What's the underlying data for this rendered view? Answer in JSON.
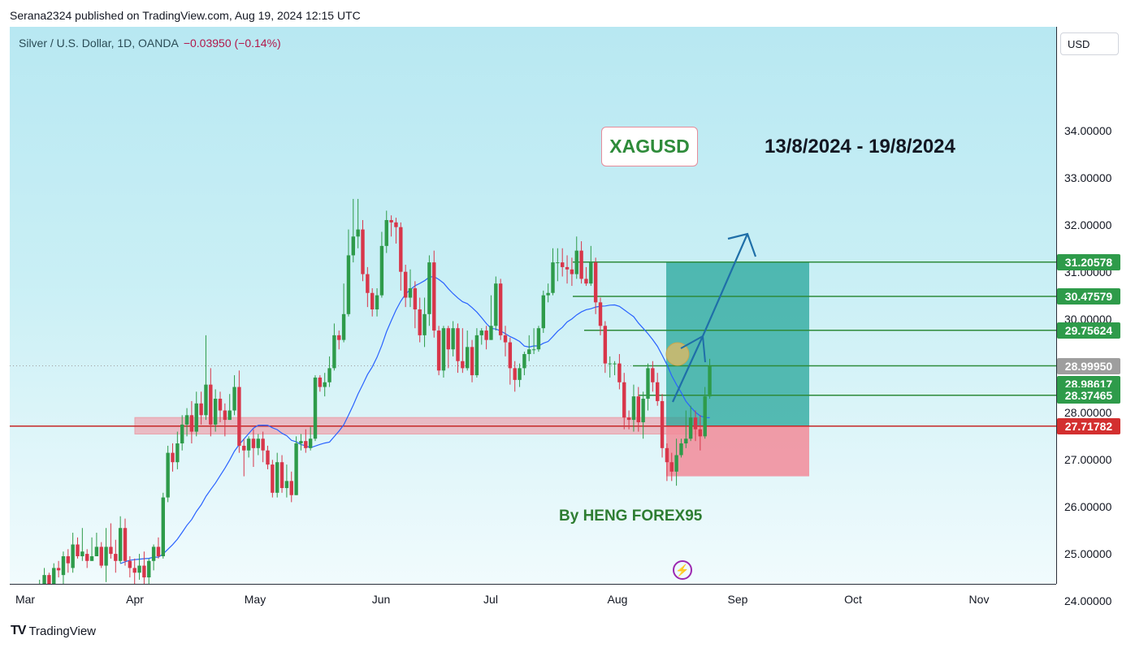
{
  "header": {
    "published_line": "Serana2324 published on TradingView.com, Aug 19, 2024 12:15 UTC"
  },
  "symbol": {
    "title": "Silver / U.S. Dollar, 1D, OANDA",
    "change": "−0.03950 (−0.14%)"
  },
  "annotations": {
    "symbol_box": "XAGUSD",
    "date_range": "13/8/2024 - 19/8/2024",
    "author": "By HENG FOREX95",
    "bolt_icon": "lightning-icon"
  },
  "yaxis": {
    "currency": "USD"
  },
  "footer": {
    "logo_mark": "TV",
    "brand": "TradingView"
  },
  "colors": {
    "up": "#2e9b4a",
    "down": "#d8364a",
    "ma": "#2962ff",
    "target_zone": "#26a69a",
    "stop_zone": "#f28b99",
    "support": "#c62828"
  },
  "chart_data": {
    "type": "candlestick",
    "title": "Silver / U.S. Dollar, 1D, OANDA",
    "ylim": [
      23.8,
      35.5
    ],
    "yticks": [
      24,
      25,
      26,
      27,
      28,
      29,
      30,
      31,
      32,
      33,
      34
    ],
    "ytick_labels": [
      "24.00000",
      "25.00000",
      "26.00000",
      "27.00000",
      "28.00000",
      "29.00000",
      "30.00000",
      "31.00000",
      "32.00000",
      "33.00000",
      "34.00000"
    ],
    "x_months": [
      "Mar",
      "Apr",
      "May",
      "Jun",
      "Jul",
      "Aug",
      "Sep",
      "Oct",
      "Nov"
    ],
    "price_labels": [
      {
        "value": 31.20578,
        "text": "31.20578",
        "color": "#2e9b4a"
      },
      {
        "value": 30.47579,
        "text": "30.47579",
        "color": "#2e9b4a"
      },
      {
        "value": 29.75624,
        "text": "29.75624",
        "color": "#2e9b4a"
      },
      {
        "value": 28.9995,
        "text": "28.99950",
        "color": "#9e9e9e"
      },
      {
        "value": 28.98617,
        "text": "28.98617",
        "color": "#2e9b4a"
      },
      {
        "value": 28.37465,
        "text": "28.37465",
        "color": "#2e9b4a"
      },
      {
        "value": 27.71782,
        "text": "27.71782",
        "color": "#d32f2f"
      }
    ],
    "target_levels": [
      31.20578,
      30.47579,
      29.75624,
      28.9995,
      28.37465
    ],
    "support_level": 27.71782,
    "support_zone": [
      27.55,
      27.9
    ],
    "position": {
      "entry": 27.71782,
      "target": 31.20578,
      "stop": 26.65
    },
    "candles": [
      [
        24.02,
        24.08,
        23.98,
        23.9
      ],
      [
        23.9,
        24.05,
        24.25,
        23.85
      ],
      [
        24.3,
        24.35,
        24.45,
        24.0
      ],
      [
        24.35,
        24.55,
        24.7,
        24.25
      ],
      [
        24.55,
        24.3,
        24.6,
        24.2
      ],
      [
        24.3,
        24.7,
        24.8,
        24.2
      ],
      [
        24.7,
        24.65,
        24.85,
        24.5
      ],
      [
        24.55,
        24.95,
        25.05,
        24.35
      ],
      [
        24.95,
        24.8,
        25.1,
        24.6
      ],
      [
        24.7,
        25.2,
        25.45,
        24.6
      ],
      [
        25.2,
        24.95,
        25.35,
        24.9
      ],
      [
        24.95,
        25.05,
        25.55,
        24.85
      ],
      [
        25.0,
        24.85,
        25.1,
        24.7
      ],
      [
        24.85,
        24.95,
        25.35,
        24.85
      ],
      [
        24.95,
        25.15,
        25.45,
        24.95
      ],
      [
        25.15,
        24.75,
        25.25,
        24.7
      ],
      [
        24.75,
        25.15,
        25.55,
        24.4
      ],
      [
        25.15,
        25.0,
        25.65,
        24.9
      ],
      [
        25.0,
        24.85,
        25.3,
        24.6
      ],
      [
        24.85,
        25.55,
        25.8,
        24.8
      ],
      [
        25.55,
        24.85,
        25.75,
        24.75
      ],
      [
        24.85,
        24.7,
        24.95,
        24.5
      ],
      [
        24.7,
        24.6,
        24.9,
        24.35
      ],
      [
        24.6,
        24.75,
        25.0,
        24.45
      ],
      [
        24.75,
        24.5,
        25.05,
        24.35
      ],
      [
        24.5,
        24.85,
        24.9,
        24.35
      ],
      [
        24.85,
        25.15,
        25.2,
        24.65
      ],
      [
        25.15,
        24.95,
        25.35,
        24.9
      ],
      [
        24.95,
        26.2,
        26.3,
        24.9
      ],
      [
        26.2,
        27.15,
        27.3,
        26.1
      ],
      [
        27.15,
        26.95,
        27.35,
        26.75
      ],
      [
        26.95,
        27.35,
        27.6,
        26.8
      ],
      [
        27.35,
        27.75,
        27.95,
        27.2
      ],
      [
        27.75,
        27.95,
        28.1,
        27.5
      ],
      [
        27.95,
        27.6,
        28.25,
        27.35
      ],
      [
        27.6,
        28.2,
        28.45,
        27.5
      ],
      [
        28.2,
        27.95,
        28.45,
        27.75
      ],
      [
        27.95,
        28.6,
        29.65,
        27.85
      ],
      [
        28.6,
        27.75,
        28.95,
        27.5
      ],
      [
        27.75,
        28.3,
        28.5,
        27.6
      ],
      [
        28.3,
        28.05,
        28.45,
        27.8
      ],
      [
        28.05,
        27.85,
        28.2,
        27.5
      ],
      [
        27.85,
        28.05,
        28.4,
        27.85
      ],
      [
        28.05,
        28.55,
        28.8,
        27.95
      ],
      [
        28.55,
        27.3,
        28.9,
        27.15
      ],
      [
        27.3,
        27.2,
        27.45,
        26.65
      ],
      [
        27.2,
        27.45,
        27.5,
        27.05
      ],
      [
        27.45,
        27.25,
        27.65,
        26.85
      ],
      [
        27.25,
        27.45,
        27.55,
        27.1
      ],
      [
        27.45,
        27.2,
        27.6,
        26.95
      ],
      [
        27.2,
        26.9,
        27.3,
        26.8
      ],
      [
        26.9,
        26.3,
        27.0,
        26.2
      ],
      [
        26.3,
        26.95,
        27.15,
        26.2
      ],
      [
        26.95,
        26.4,
        27.1,
        26.3
      ],
      [
        26.4,
        26.55,
        26.9,
        26.2
      ],
      [
        26.55,
        26.25,
        26.75,
        26.1
      ],
      [
        26.25,
        27.35,
        27.5,
        26.25
      ],
      [
        27.35,
        27.4,
        27.55,
        27.2
      ],
      [
        27.4,
        27.25,
        27.65,
        27.15
      ],
      [
        27.25,
        27.45,
        27.7,
        27.2
      ],
      [
        27.45,
        28.75,
        28.8,
        27.4
      ],
      [
        28.75,
        28.55,
        28.8,
        28.45
      ],
      [
        28.55,
        28.65,
        28.85,
        28.35
      ],
      [
        28.65,
        28.95,
        29.2,
        28.55
      ],
      [
        28.95,
        29.65,
        29.9,
        28.9
      ],
      [
        29.65,
        29.55,
        29.75,
        29.35
      ],
      [
        29.55,
        30.1,
        30.75,
        29.5
      ],
      [
        30.1,
        31.35,
        31.9,
        30.05
      ],
      [
        31.35,
        31.75,
        32.55,
        31.2
      ],
      [
        31.75,
        31.9,
        32.55,
        31.5
      ],
      [
        31.9,
        30.95,
        32.1,
        30.8
      ],
      [
        30.95,
        30.55,
        31.1,
        30.25
      ],
      [
        30.55,
        30.2,
        30.65,
        30.05
      ],
      [
        30.2,
        30.5,
        30.65,
        30.05
      ],
      [
        30.5,
        31.55,
        31.85,
        30.45
      ],
      [
        31.55,
        32.1,
        32.3,
        31.4
      ],
      [
        32.1,
        32.05,
        32.2,
        31.75
      ],
      [
        32.05,
        31.95,
        32.15,
        31.6
      ],
      [
        31.95,
        31.0,
        32.05,
        30.6
      ],
      [
        31.0,
        30.45,
        31.15,
        30.25
      ],
      [
        30.45,
        30.65,
        31.05,
        30.25
      ],
      [
        30.65,
        30.2,
        30.8,
        29.8
      ],
      [
        30.2,
        29.65,
        30.45,
        29.5
      ],
      [
        29.65,
        30.1,
        30.45,
        29.4
      ],
      [
        30.1,
        31.2,
        31.35,
        29.85
      ],
      [
        31.2,
        29.75,
        31.45,
        29.6
      ],
      [
        29.75,
        28.9,
        29.85,
        28.8
      ],
      [
        28.9,
        29.8,
        29.85,
        28.75
      ],
      [
        29.8,
        29.35,
        29.85,
        28.95
      ],
      [
        29.35,
        29.8,
        29.95,
        29.2
      ],
      [
        29.8,
        29.1,
        29.9,
        28.85
      ],
      [
        29.1,
        28.95,
        29.8,
        28.85
      ],
      [
        28.95,
        29.4,
        29.75,
        28.9
      ],
      [
        29.4,
        28.8,
        29.55,
        28.65
      ],
      [
        28.8,
        29.65,
        29.8,
        28.75
      ],
      [
        29.65,
        29.75,
        29.8,
        29.45
      ],
      [
        29.75,
        29.55,
        29.85,
        29.35
      ],
      [
        29.55,
        29.85,
        30.5,
        29.55
      ],
      [
        29.85,
        30.75,
        30.9,
        29.75
      ],
      [
        30.75,
        29.65,
        30.85,
        29.55
      ],
      [
        29.65,
        29.5,
        29.85,
        29.2
      ],
      [
        29.5,
        28.95,
        29.6,
        28.6
      ],
      [
        28.95,
        28.7,
        29.1,
        28.45
      ],
      [
        28.7,
        28.95,
        29.05,
        28.55
      ],
      [
        28.95,
        29.25,
        29.3,
        28.8
      ],
      [
        29.25,
        29.35,
        29.65,
        29.1
      ],
      [
        29.35,
        29.35,
        29.8,
        29.25
      ],
      [
        29.35,
        29.8,
        29.85,
        29.3
      ],
      [
        29.8,
        30.5,
        30.6,
        29.7
      ],
      [
        30.5,
        30.55,
        30.75,
        30.35
      ],
      [
        30.55,
        31.2,
        31.5,
        30.5
      ],
      [
        31.2,
        31.2,
        31.5,
        30.8
      ],
      [
        31.2,
        31.1,
        31.5,
        30.9
      ],
      [
        31.1,
        31.05,
        31.35,
        30.75
      ],
      [
        31.05,
        30.95,
        31.3,
        30.7
      ],
      [
        30.95,
        31.45,
        31.75,
        30.85
      ],
      [
        31.45,
        30.85,
        31.65,
        30.75
      ],
      [
        30.85,
        30.75,
        31.1,
        30.7
      ],
      [
        30.75,
        31.2,
        31.55,
        30.7
      ],
      [
        31.2,
        30.35,
        31.3,
        30.1
      ],
      [
        30.35,
        29.85,
        30.45,
        29.65
      ],
      [
        29.85,
        29.05,
        29.95,
        28.85
      ],
      [
        29.05,
        29.05,
        29.2,
        28.75
      ],
      [
        29.05,
        29.05,
        29.1,
        28.8
      ],
      [
        29.05,
        28.65,
        29.25,
        28.5
      ],
      [
        28.65,
        27.9,
        28.85,
        27.65
      ],
      [
        27.9,
        27.85,
        28.05,
        27.65
      ],
      [
        27.85,
        28.35,
        28.6,
        27.6
      ],
      [
        28.35,
        27.8,
        28.55,
        27.6
      ],
      [
        27.8,
        28.3,
        28.45,
        27.45
      ],
      [
        28.3,
        28.95,
        29.05,
        28.05
      ],
      [
        28.95,
        28.65,
        29.1,
        28.45
      ],
      [
        28.65,
        28.25,
        28.85,
        28.15
      ],
      [
        28.25,
        27.25,
        28.4,
        27.05
      ],
      [
        27.25,
        26.95,
        27.35,
        26.55
      ],
      [
        26.95,
        26.75,
        27.15,
        26.55
      ],
      [
        26.75,
        27.1,
        27.45,
        26.45
      ],
      [
        27.1,
        27.35,
        27.45,
        27.05
      ],
      [
        27.35,
        27.45,
        28.05,
        27.25
      ],
      [
        27.45,
        27.9,
        28.15,
        27.4
      ],
      [
        27.9,
        27.65,
        28.05,
        27.4
      ],
      [
        27.65,
        27.5,
        27.95,
        27.2
      ],
      [
        27.5,
        28.35,
        28.55,
        27.45
      ],
      [
        28.35,
        28.99,
        29.15,
        28.3
      ]
    ]
  }
}
